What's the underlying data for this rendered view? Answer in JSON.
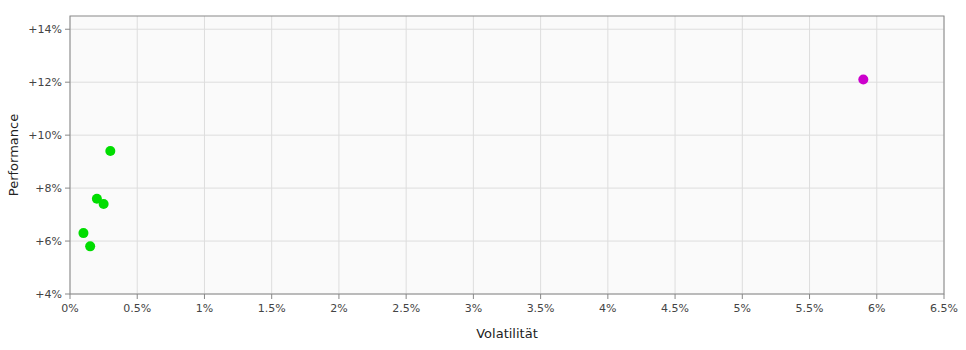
{
  "chart_data": {
    "type": "scatter",
    "xlabel": "Volatilität",
    "ylabel": "Performance",
    "xlim": [
      0,
      0.065
    ],
    "ylim": [
      0.04,
      0.145
    ],
    "xticks": [
      {
        "value": 0.0,
        "label": "0%"
      },
      {
        "value": 0.005,
        "label": "0.5%"
      },
      {
        "value": 0.01,
        "label": "1%"
      },
      {
        "value": 0.015,
        "label": "1.5%"
      },
      {
        "value": 0.02,
        "label": "2%"
      },
      {
        "value": 0.025,
        "label": "2.5%"
      },
      {
        "value": 0.03,
        "label": "3%"
      },
      {
        "value": 0.035,
        "label": "3.5%"
      },
      {
        "value": 0.04,
        "label": "4%"
      },
      {
        "value": 0.045,
        "label": "4.5%"
      },
      {
        "value": 0.05,
        "label": "5%"
      },
      {
        "value": 0.055,
        "label": "5.5%"
      },
      {
        "value": 0.06,
        "label": "6%"
      },
      {
        "value": 0.065,
        "label": "6.5%"
      }
    ],
    "yticks": [
      {
        "value": 0.04,
        "label": "+4%"
      },
      {
        "value": 0.06,
        "label": "+6%"
      },
      {
        "value": 0.08,
        "label": "+8%"
      },
      {
        "value": 0.1,
        "label": "+10%"
      },
      {
        "value": 0.12,
        "label": "+12%"
      },
      {
        "value": 0.14,
        "label": "+14%"
      }
    ],
    "grid": true,
    "series": [
      {
        "color": "#00dd00",
        "x": [
          0.003,
          0.002,
          0.0025,
          0.001,
          0.0015
        ],
        "values": [
          0.094,
          0.076,
          0.074,
          0.063,
          0.058
        ]
      },
      {
        "color": "#cc00cc",
        "x": [
          0.059
        ],
        "values": [
          0.121
        ]
      }
    ]
  }
}
